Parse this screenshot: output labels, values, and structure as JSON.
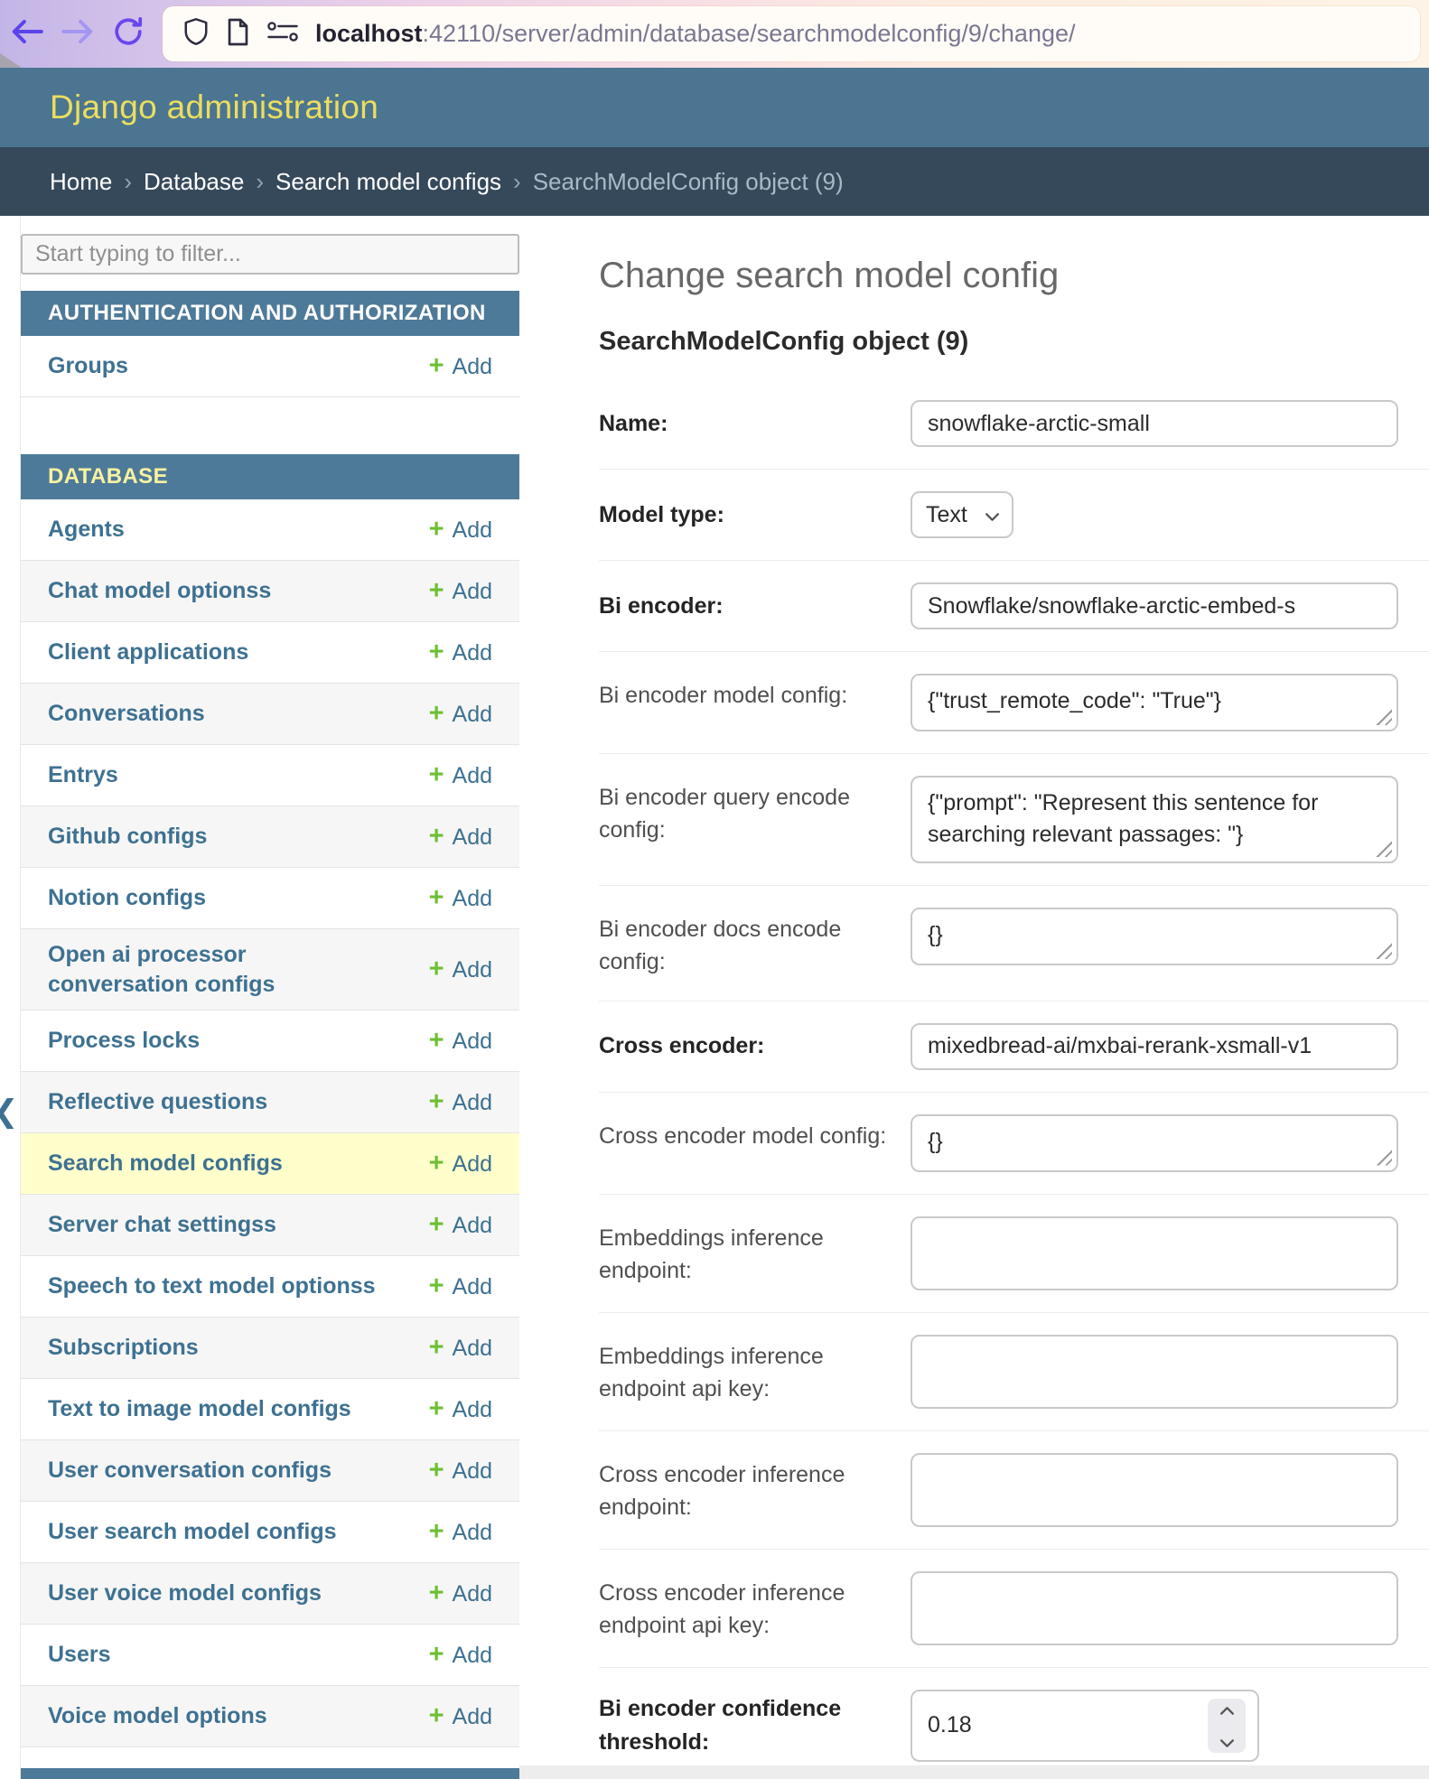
{
  "browser": {
    "url": {
      "host": "localhost",
      "rest": ":42110/server/admin/database/searchmodelconfig/9/change/"
    },
    "icons": {
      "back": "arrow-left",
      "forward": "arrow-right",
      "reload": "refresh-circular-arrow",
      "shield": "shield-outline",
      "page": "document-outline",
      "site_settings": "toggles-with-dots"
    }
  },
  "header": {
    "title": "Django administration"
  },
  "breadcrumb": {
    "items": [
      "Home",
      "Database",
      "Search model configs"
    ],
    "current": "SearchModelConfig object (9)",
    "separator": "›"
  },
  "sidebar": {
    "filter_placeholder": "Start typing to filter...",
    "add_label": "Add",
    "add_icon": "plus",
    "collapse_icon": "chevron-left",
    "sections": [
      {
        "title": "AUTHENTICATION AND AUTHORIZATION",
        "current_app": false,
        "items": [
          {
            "label": "Groups",
            "stripe": false,
            "highlight": false
          }
        ]
      },
      {
        "title": "DATABASE",
        "current_app": true,
        "items": [
          {
            "label": "Agents",
            "stripe": false,
            "highlight": false
          },
          {
            "label": "Chat model optionss",
            "stripe": true,
            "highlight": false
          },
          {
            "label": "Client applications",
            "stripe": false,
            "highlight": false
          },
          {
            "label": "Conversations",
            "stripe": true,
            "highlight": false
          },
          {
            "label": "Entrys",
            "stripe": false,
            "highlight": false
          },
          {
            "label": "Github configs",
            "stripe": true,
            "highlight": false
          },
          {
            "label": "Notion configs",
            "stripe": false,
            "highlight": false
          },
          {
            "label": "Open ai processor conversation configs",
            "stripe": true,
            "highlight": false
          },
          {
            "label": "Process locks",
            "stripe": false,
            "highlight": false
          },
          {
            "label": "Reflective questions",
            "stripe": true,
            "highlight": false
          },
          {
            "label": "Search model configs",
            "stripe": false,
            "highlight": true
          },
          {
            "label": "Server chat settingss",
            "stripe": true,
            "highlight": false
          },
          {
            "label": "Speech to text model optionss",
            "stripe": false,
            "highlight": false
          },
          {
            "label": "Subscriptions",
            "stripe": true,
            "highlight": false
          },
          {
            "label": "Text to image model configs",
            "stripe": false,
            "highlight": false
          },
          {
            "label": "User conversation configs",
            "stripe": true,
            "highlight": false
          },
          {
            "label": "User search model configs",
            "stripe": false,
            "highlight": false
          },
          {
            "label": "User voice model configs",
            "stripe": true,
            "highlight": false
          },
          {
            "label": "Users",
            "stripe": false,
            "highlight": false
          },
          {
            "label": "Voice model options",
            "stripe": true,
            "highlight": false
          }
        ]
      }
    ]
  },
  "main": {
    "page_title": "Change search model config",
    "object_title": "SearchModelConfig object (9)",
    "fields": [
      {
        "label": "Name:",
        "required": true,
        "type": "text",
        "value": "snowflake-arctic-small"
      },
      {
        "label": "Model type:",
        "required": true,
        "type": "select",
        "value": "Text"
      },
      {
        "label": "Bi encoder:",
        "required": true,
        "type": "text",
        "value": "Snowflake/snowflake-arctic-embed-s"
      },
      {
        "label": "Bi encoder model config:",
        "required": false,
        "type": "textarea",
        "value": "{\"trust_remote_code\": \"True\"}"
      },
      {
        "label": "Bi encoder query encode config:",
        "required": false,
        "type": "textarea",
        "value": "{\"prompt\": \"Represent this sentence for searching relevant passages: \"}"
      },
      {
        "label": "Bi encoder docs encode config:",
        "required": false,
        "type": "textarea",
        "value": "{}"
      },
      {
        "label": "Cross encoder:",
        "required": true,
        "type": "text",
        "value": "mixedbread-ai/mxbai-rerank-xsmall-v1"
      },
      {
        "label": "Cross encoder model config:",
        "required": false,
        "type": "textarea",
        "value": "{}"
      },
      {
        "label": "Embeddings inference endpoint:",
        "required": false,
        "type": "tallbox",
        "value": ""
      },
      {
        "label": "Embeddings inference endpoint api key:",
        "required": false,
        "type": "tallbox",
        "value": ""
      },
      {
        "label": "Cross encoder inference endpoint:",
        "required": false,
        "type": "tallbox",
        "value": ""
      },
      {
        "label": "Cross encoder inference endpoint api key:",
        "required": false,
        "type": "tallbox",
        "value": ""
      },
      {
        "label": "Bi encoder confidence threshold:",
        "required": true,
        "type": "number",
        "value": "0.18"
      }
    ]
  },
  "colors": {
    "header_bg": "#4b7590",
    "header_title": "#ebde5f",
    "breadcrumb_bg": "#36495a",
    "module_header_bg": "#4e7a99",
    "module_header_current_text": "#f7f2a0",
    "link_blue": "#3e7191",
    "add_green": "#6dbf33",
    "highlight_row": "#ffffcc",
    "stripe_row": "#f6f6f6"
  }
}
